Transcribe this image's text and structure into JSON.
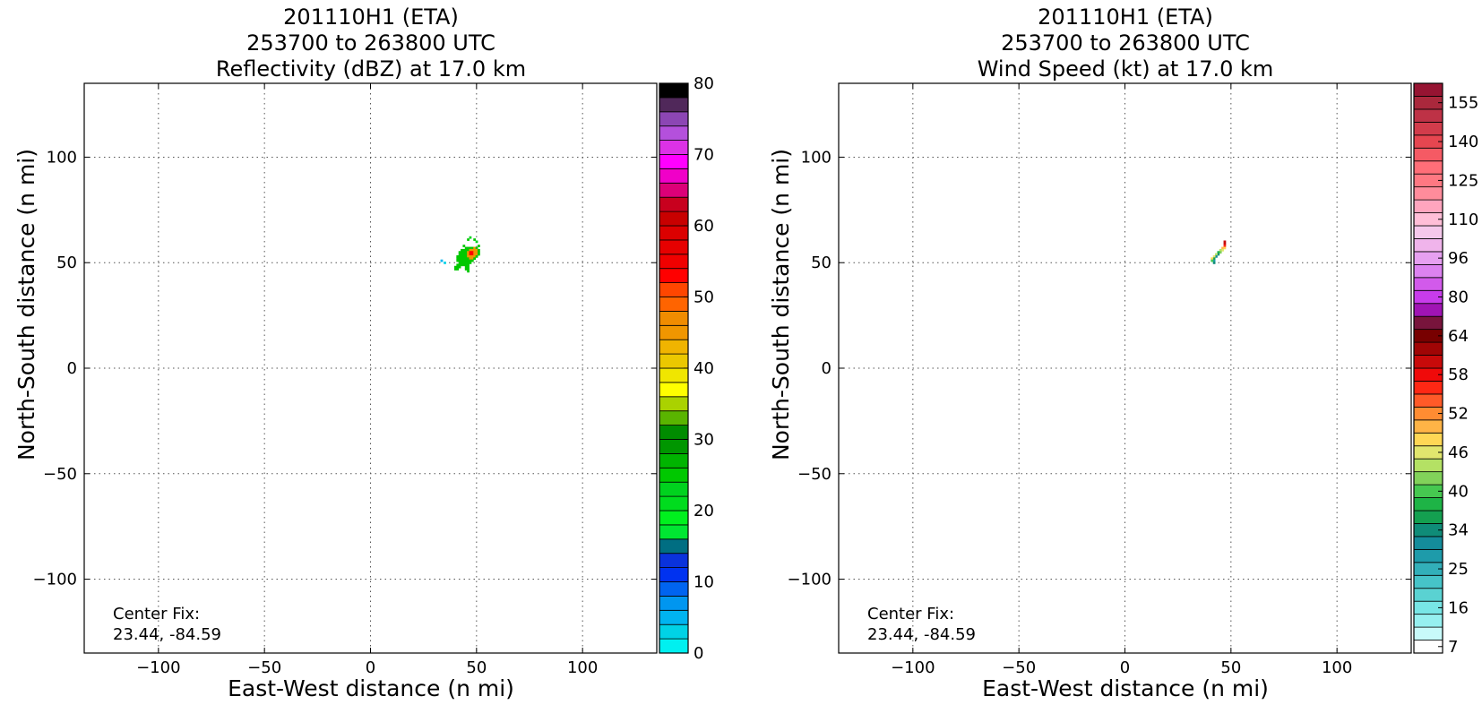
{
  "chart_data": [
    {
      "type": "heatmap",
      "title_lines": [
        "201110H1 (ETA)",
        "253700 to 263800 UTC",
        "Reflectivity (dBZ) at 17.0 km"
      ],
      "xlabel": "East-West distance (n mi)",
      "ylabel": "North-South distance (n mi)",
      "xlim": [
        -135,
        135
      ],
      "ylim": [
        -135,
        135
      ],
      "xticks": [
        -100,
        -50,
        0,
        50,
        100
      ],
      "yticks": [
        -100,
        -50,
        0,
        50,
        100
      ],
      "xtick_labels": [
        "−100",
        "−50",
        "0",
        "50",
        "100"
      ],
      "ytick_labels": [
        "−100",
        "−50",
        "0",
        "50",
        "100"
      ],
      "grid": true,
      "center_fix_label": "Center Fix:",
      "center_fix_value": "23.44, -84.59",
      "colorbar": {
        "label_values": [
          "0",
          "10",
          "20",
          "30",
          "40",
          "50",
          "60",
          "70",
          "80"
        ],
        "label_positions": [
          0,
          10,
          20,
          30,
          40,
          50,
          60,
          70,
          80
        ],
        "range": [
          0,
          80
        ],
        "colors": [
          "#00f0f0",
          "#00d2e6",
          "#00b4f0",
          "#0096f0",
          "#0064f0",
          "#0032f0",
          "#0a32dc",
          "#006e82",
          "#00e632",
          "#00f01e",
          "#00dc1e",
          "#00d21e",
          "#00c800",
          "#00b400",
          "#009600",
          "#008c00",
          "#5ab400",
          "#aad200",
          "#ffff00",
          "#f0e600",
          "#ebc800",
          "#f0b400",
          "#f09600",
          "#f08c00",
          "#ff6400",
          "#ff4600",
          "#ff0000",
          "#f00000",
          "#e60000",
          "#dc0000",
          "#c80000",
          "#c8001e",
          "#dc0078",
          "#f000c8",
          "#ff00ff",
          "#dc32e6",
          "#b450dc",
          "#8c46b4",
          "#50285a",
          "#000000"
        ]
      },
      "cells": [
        {
          "x": 33.5,
          "y": 51,
          "v": 2
        },
        {
          "x": 35,
          "y": 50,
          "v": 1
        },
        {
          "x": 46,
          "y": 61,
          "v": 12
        },
        {
          "x": 47,
          "y": 62,
          "v": 11
        },
        {
          "x": 49,
          "y": 61,
          "v": 12
        },
        {
          "x": 50,
          "y": 60,
          "v": 11
        },
        {
          "x": 51,
          "y": 58,
          "v": 12
        },
        {
          "x": 44,
          "y": 58,
          "v": 12
        },
        {
          "x": 45,
          "y": 57,
          "v": 12
        },
        {
          "x": 46,
          "y": 57,
          "v": 12
        },
        {
          "x": 47,
          "y": 57,
          "v": 12
        },
        {
          "x": 48,
          "y": 57,
          "v": 12
        },
        {
          "x": 49,
          "y": 57,
          "v": 22
        },
        {
          "x": 50,
          "y": 57,
          "v": 12
        },
        {
          "x": 43,
          "y": 56,
          "v": 12
        },
        {
          "x": 44,
          "y": 56,
          "v": 12
        },
        {
          "x": 45,
          "y": 56,
          "v": 12
        },
        {
          "x": 46,
          "y": 56,
          "v": 12
        },
        {
          "x": 47,
          "y": 56,
          "v": 22
        },
        {
          "x": 48,
          "y": 56,
          "v": 22
        },
        {
          "x": 49,
          "y": 56,
          "v": 22
        },
        {
          "x": 50,
          "y": 56,
          "v": 22
        },
        {
          "x": 51,
          "y": 56,
          "v": 12
        },
        {
          "x": 42,
          "y": 55,
          "v": 12
        },
        {
          "x": 43,
          "y": 55,
          "v": 12
        },
        {
          "x": 44,
          "y": 55,
          "v": 12
        },
        {
          "x": 45,
          "y": 55,
          "v": 12
        },
        {
          "x": 46,
          "y": 55,
          "v": 22
        },
        {
          "x": 47,
          "y": 55,
          "v": 26
        },
        {
          "x": 48,
          "y": 55,
          "v": 26
        },
        {
          "x": 49,
          "y": 55,
          "v": 22
        },
        {
          "x": 50,
          "y": 55,
          "v": 22
        },
        {
          "x": 51,
          "y": 55,
          "v": 12
        },
        {
          "x": 42,
          "y": 54,
          "v": 12
        },
        {
          "x": 43,
          "y": 54,
          "v": 12
        },
        {
          "x": 44,
          "y": 54,
          "v": 12
        },
        {
          "x": 45,
          "y": 54,
          "v": 12
        },
        {
          "x": 46,
          "y": 54,
          "v": 22
        },
        {
          "x": 47,
          "y": 54,
          "v": 26
        },
        {
          "x": 48,
          "y": 54,
          "v": 26
        },
        {
          "x": 49,
          "y": 54,
          "v": 22
        },
        {
          "x": 50,
          "y": 54,
          "v": 22
        },
        {
          "x": 51,
          "y": 54,
          "v": 12
        },
        {
          "x": 41,
          "y": 53,
          "v": 12
        },
        {
          "x": 42,
          "y": 53,
          "v": 12
        },
        {
          "x": 43,
          "y": 53,
          "v": 12
        },
        {
          "x": 44,
          "y": 53,
          "v": 12
        },
        {
          "x": 45,
          "y": 53,
          "v": 12
        },
        {
          "x": 46,
          "y": 53,
          "v": 22
        },
        {
          "x": 47,
          "y": 53,
          "v": 22
        },
        {
          "x": 48,
          "y": 53,
          "v": 22
        },
        {
          "x": 49,
          "y": 53,
          "v": 22
        },
        {
          "x": 50,
          "y": 53,
          "v": 12
        },
        {
          "x": 41,
          "y": 52,
          "v": 12
        },
        {
          "x": 42,
          "y": 52,
          "v": 12
        },
        {
          "x": 43,
          "y": 52,
          "v": 12
        },
        {
          "x": 44,
          "y": 52,
          "v": 12
        },
        {
          "x": 45,
          "y": 52,
          "v": 12
        },
        {
          "x": 46,
          "y": 52,
          "v": 12
        },
        {
          "x": 47,
          "y": 52,
          "v": 22
        },
        {
          "x": 48,
          "y": 52,
          "v": 22
        },
        {
          "x": 49,
          "y": 52,
          "v": 12
        },
        {
          "x": 41,
          "y": 51,
          "v": 12
        },
        {
          "x": 42,
          "y": 51,
          "v": 12
        },
        {
          "x": 43,
          "y": 51,
          "v": 12
        },
        {
          "x": 44,
          "y": 51,
          "v": 12
        },
        {
          "x": 45,
          "y": 51,
          "v": 12
        },
        {
          "x": 46,
          "y": 51,
          "v": 12
        },
        {
          "x": 47,
          "y": 51,
          "v": 12
        },
        {
          "x": 48,
          "y": 51,
          "v": 12
        },
        {
          "x": 42,
          "y": 50,
          "v": 12
        },
        {
          "x": 43,
          "y": 50,
          "v": 12
        },
        {
          "x": 44,
          "y": 50,
          "v": 12
        },
        {
          "x": 45,
          "y": 50,
          "v": 12
        },
        {
          "x": 46,
          "y": 50,
          "v": 12
        },
        {
          "x": 47,
          "y": 50,
          "v": 12
        },
        {
          "x": 41,
          "y": 49,
          "v": 12
        },
        {
          "x": 42,
          "y": 49,
          "v": 12
        },
        {
          "x": 43,
          "y": 49,
          "v": 12
        },
        {
          "x": 44,
          "y": 49,
          "v": 12
        },
        {
          "x": 45,
          "y": 49,
          "v": 12
        },
        {
          "x": 46,
          "y": 49,
          "v": 12
        },
        {
          "x": 40,
          "y": 48,
          "v": 12
        },
        {
          "x": 41,
          "y": 48,
          "v": 12
        },
        {
          "x": 42,
          "y": 48,
          "v": 12
        },
        {
          "x": 45,
          "y": 48,
          "v": 12
        },
        {
          "x": 46,
          "y": 48,
          "v": 12
        },
        {
          "x": 40,
          "y": 47,
          "v": 12
        },
        {
          "x": 41,
          "y": 47,
          "v": 12
        },
        {
          "x": 45,
          "y": 47,
          "v": 12
        },
        {
          "x": 46,
          "y": 47,
          "v": 12
        },
        {
          "x": 46,
          "y": 46,
          "v": 12
        }
      ]
    },
    {
      "type": "heatmap",
      "title_lines": [
        "201110H1 (ETA)",
        "253700 to 263800 UTC",
        "Wind Speed (kt) at 17.0 km"
      ],
      "xlabel": "East-West distance (n mi)",
      "ylabel": "North-South distance (n mi)",
      "xlim": [
        -135,
        135
      ],
      "ylim": [
        -135,
        135
      ],
      "xticks": [
        -100,
        -50,
        0,
        50,
        100
      ],
      "yticks": [
        -100,
        -50,
        0,
        50,
        100
      ],
      "xtick_labels": [
        "−100",
        "−50",
        "0",
        "50",
        "100"
      ],
      "ytick_labels": [
        "−100",
        "−50",
        "0",
        "50",
        "100"
      ],
      "grid": true,
      "center_fix_label": "Center Fix:",
      "center_fix_value": "23.44, -84.59",
      "colorbar": {
        "label_values": [
          "7",
          "16",
          "25",
          "34",
          "40",
          "46",
          "52",
          "58",
          "64",
          "80",
          "96",
          "110",
          "125",
          "140",
          "155"
        ],
        "label_positions": [
          0.5,
          3.5,
          6.5,
          9.5,
          12.5,
          15.5,
          18.5,
          21.5,
          24.5,
          27.5,
          30.5,
          33.5,
          36.5,
          39.5,
          42.5
        ],
        "range": [
          0,
          44
        ],
        "colors": [
          "#ffffff",
          "#c8fafa",
          "#96f0f0",
          "#78e6e6",
          "#5ad2d2",
          "#46c3c8",
          "#32afb9",
          "#1e9baa",
          "#148c9b",
          "#0f8c78",
          "#14a050",
          "#1eb446",
          "#46c850",
          "#82d25a",
          "#b4e164",
          "#e1e66e",
          "#ffd755",
          "#ffb446",
          "#ff8c32",
          "#ff5a28",
          "#ff2814",
          "#f00a0a",
          "#c80a0a",
          "#a00505",
          "#780000",
          "#78143c",
          "#a014b4",
          "#c83ceb",
          "#d25aeb",
          "#dc82f0",
          "#e6a0f0",
          "#f0b4eb",
          "#f5c8eb",
          "#ffbed7",
          "#ffa5be",
          "#ff8c9b",
          "#ff7882",
          "#ff6e78",
          "#f55a64",
          "#e64650",
          "#d23c4b",
          "#be3246",
          "#aa283c",
          "#961432"
        ]
      },
      "cells": [
        {
          "x": 47,
          "y": 60,
          "v": 22
        },
        {
          "x": 47,
          "y": 59,
          "v": 22
        },
        {
          "x": 47,
          "y": 58,
          "v": 20
        },
        {
          "x": 46,
          "y": 57,
          "v": 17
        },
        {
          "x": 47,
          "y": 57,
          "v": 16
        },
        {
          "x": 46,
          "y": 56,
          "v": 15
        },
        {
          "x": 45,
          "y": 56,
          "v": 14
        },
        {
          "x": 45,
          "y": 55,
          "v": 13
        },
        {
          "x": 44,
          "y": 55,
          "v": 11
        },
        {
          "x": 44,
          "y": 54,
          "v": 9
        },
        {
          "x": 43,
          "y": 54,
          "v": 14
        },
        {
          "x": 43,
          "y": 53,
          "v": 8
        },
        {
          "x": 42,
          "y": 53,
          "v": 15
        },
        {
          "x": 42,
          "y": 52,
          "v": 10
        },
        {
          "x": 41,
          "y": 52,
          "v": 16
        },
        {
          "x": 42,
          "y": 51,
          "v": 7
        },
        {
          "x": 41,
          "y": 51,
          "v": 12
        },
        {
          "x": 42,
          "y": 50,
          "v": 9
        }
      ]
    }
  ]
}
